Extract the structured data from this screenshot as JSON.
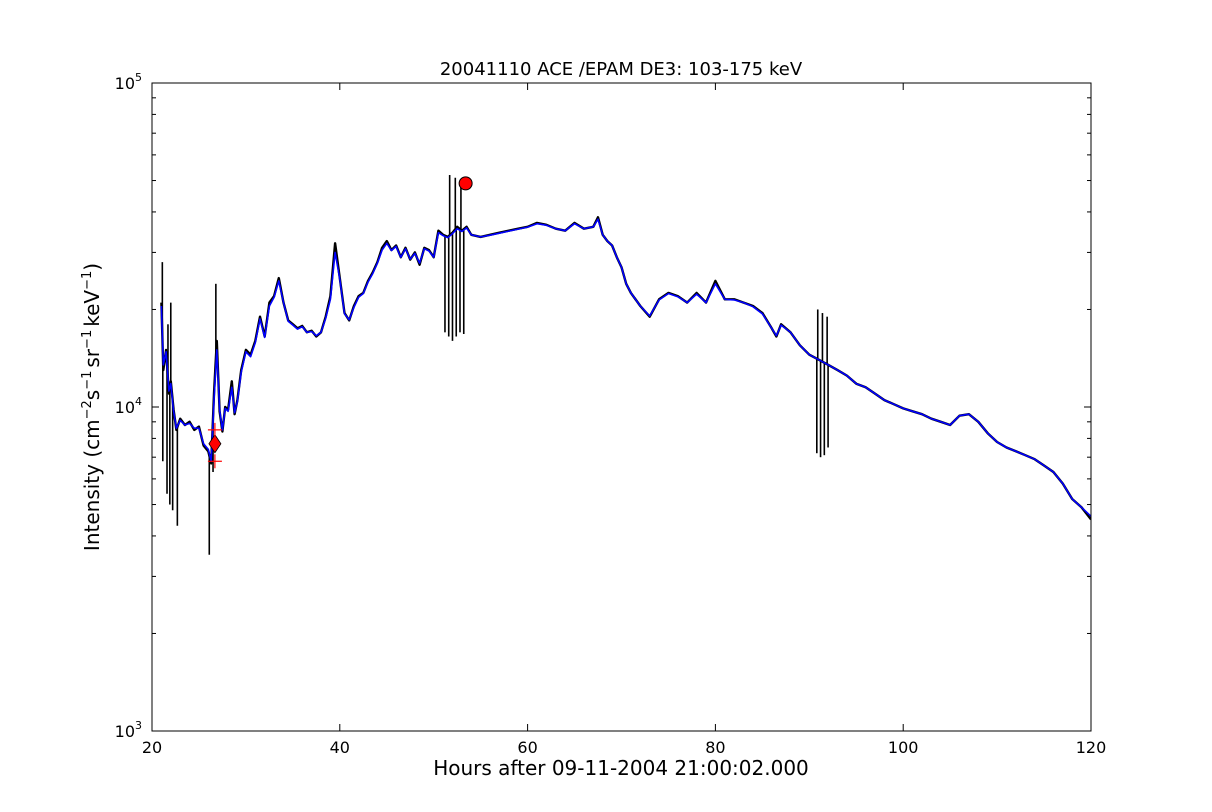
{
  "chart_data": {
    "type": "line",
    "title": "20041110 ACE /EPAM DE3: 103-175 keV",
    "xlabel": "Hours after 09-11-2004 21:00:02.000",
    "ylabel": {
      "base": "Intensity (cm",
      "sup1": "−2",
      "part2": "s",
      "sup2": "−1",
      "part3": "sr",
      "sup3": "−1",
      "part4": "keV",
      "sup4": "−1",
      "end": ")"
    },
    "xlim": [
      20,
      120
    ],
    "ylim": [
      1000,
      100000
    ],
    "yscale": "log",
    "x_ticks": [
      "20",
      "40",
      "60",
      "80",
      "100",
      "120"
    ],
    "y_ticks": [
      {
        "base": "10",
        "exp": "3"
      },
      {
        "base": "10",
        "exp": "4"
      },
      {
        "base": "10",
        "exp": "5"
      }
    ],
    "grid": false,
    "series": [
      {
        "role": "raw-data",
        "color": "#000000",
        "x": [
          21.0,
          21.2,
          21.5,
          21.8,
          22.0,
          22.3,
          22.6,
          23.0,
          23.5,
          24.0,
          24.5,
          25.0,
          25.5,
          26.0,
          26.3,
          26.6,
          26.9,
          27.2,
          27.5,
          27.8,
          28.1,
          28.5,
          28.8,
          29.1,
          29.5,
          30.0,
          30.5,
          31.0,
          31.5,
          32.0,
          32.5,
          33.0,
          33.5,
          34.0,
          34.5,
          35.0,
          35.5,
          36.0,
          36.5,
          37.0,
          37.5,
          38.0,
          38.5,
          39.0,
          39.5,
          40.0,
          40.5,
          41.0,
          41.5,
          42.0,
          42.5,
          43.0,
          43.5,
          44.0,
          44.5,
          45.0,
          45.5,
          46.0,
          46.5,
          47.0,
          47.5,
          48.0,
          48.5,
          49.0,
          49.5,
          50.0,
          50.5,
          51.0,
          51.5,
          52.0,
          52.5,
          53.0,
          53.5,
          54.0,
          55.0,
          56.0,
          57.0,
          58.0,
          59.0,
          60.0,
          61.0,
          62.0,
          63.0,
          64.0,
          65.0,
          66.0,
          67.0,
          67.5,
          68.0,
          68.5,
          69.0,
          69.5,
          70.0,
          70.5,
          71.0,
          72.0,
          73.0,
          74.0,
          75.0,
          76.0,
          77.0,
          78.0,
          79.0,
          80.0,
          81.0,
          82.0,
          83.0,
          84.0,
          85.0,
          86.0,
          86.5,
          87.0,
          88.0,
          89.0,
          90.0,
          91.0,
          92.0,
          93.0,
          94.0,
          95.0,
          96.0,
          97.0,
          98.0,
          99.0,
          100.0,
          101.0,
          102.0,
          103.0,
          104.0,
          105.0,
          106.0,
          107.0,
          108.0,
          109.0,
          110.0,
          111.0,
          112.0,
          113.0,
          114.0,
          115.0,
          116.0,
          117.0,
          118.0,
          119.0,
          120.0
        ],
        "y": [
          21000,
          13000,
          15000,
          11000,
          12000,
          9800,
          8500,
          9200,
          8800,
          9000,
          8500,
          8700,
          7600,
          7300,
          6700,
          11000,
          16000,
          9700,
          8400,
          10000,
          9800,
          12000,
          9500,
          10500,
          13000,
          15000,
          14500,
          16000,
          19000,
          16500,
          21000,
          22000,
          25000,
          21000,
          18500,
          18000,
          17500,
          17800,
          17000,
          17200,
          16500,
          17000,
          19000,
          22000,
          32000,
          25000,
          19500,
          18500,
          20500,
          22000,
          22500,
          24500,
          26000,
          28000,
          31000,
          32500,
          30500,
          31500,
          29000,
          31000,
          28500,
          30000,
          27500,
          31000,
          30500,
          29000,
          35000,
          34000,
          33500,
          34500,
          36000,
          35000,
          36000,
          34000,
          33500,
          34000,
          34500,
          35000,
          35500,
          36000,
          37000,
          36500,
          35500,
          35000,
          37000,
          35500,
          36000,
          38500,
          34000,
          32500,
          31500,
          29000,
          27000,
          24000,
          22500,
          20500,
          19000,
          21500,
          22500,
          22000,
          21000,
          22500,
          21000,
          24500,
          21500,
          21500,
          21000,
          20500,
          19500,
          17500,
          16500,
          18000,
          17000,
          15500,
          14500,
          14000,
          13500,
          13000,
          12500,
          11800,
          11500,
          11000,
          10500,
          10200,
          9900,
          9700,
          9500,
          9200,
          9000,
          8800,
          9400,
          9500,
          9000,
          8300,
          7800,
          7500,
          7300,
          7100,
          6900,
          6600,
          6300,
          5800,
          5200,
          4900,
          4500
        ],
        "spikes": [
          {
            "x": 21.15,
            "y": 6800
          },
          {
            "x": 21.6,
            "y": 5400
          },
          {
            "x": 21.9,
            "y": 5000
          },
          {
            "x": 22.2,
            "y": 4800
          },
          {
            "x": 22.7,
            "y": 4300
          },
          {
            "x": 26.1,
            "y": 3500
          },
          {
            "x": 26.5,
            "y": 6300
          },
          {
            "x": 51.2,
            "y": 17000
          },
          {
            "x": 51.6,
            "y": 16500
          },
          {
            "x": 52.0,
            "y": 16000
          },
          {
            "x": 52.4,
            "y": 16500
          },
          {
            "x": 52.8,
            "y": 17000
          },
          {
            "x": 53.2,
            "y": 16800
          },
          {
            "x": 90.8,
            "y": 7200
          },
          {
            "x": 91.2,
            "y": 7000
          },
          {
            "x": 91.6,
            "y": 7100
          },
          {
            "x": 92.0,
            "y": 7500
          }
        ],
        "upspikes": [
          {
            "x": 21.1,
            "y": 28000
          },
          {
            "x": 21.7,
            "y": 18000
          },
          {
            "x": 22.0,
            "y": 21000
          },
          {
            "x": 26.8,
            "y": 24000
          },
          {
            "x": 51.7,
            "y": 52000
          },
          {
            "x": 52.3,
            "y": 51000
          },
          {
            "x": 52.9,
            "y": 50000
          },
          {
            "x": 90.9,
            "y": 20000
          },
          {
            "x": 91.4,
            "y": 19500
          },
          {
            "x": 91.9,
            "y": 19000
          }
        ]
      },
      {
        "role": "smoothed",
        "color": "#0000ff",
        "x": [
          21.0,
          21.2,
          21.5,
          21.8,
          22.0,
          22.3,
          22.6,
          23.0,
          23.5,
          24.0,
          24.5,
          25.0,
          25.5,
          26.0,
          26.3,
          26.6,
          26.9,
          27.2,
          27.5,
          27.8,
          28.1,
          28.5,
          28.8,
          29.1,
          29.5,
          30.0,
          30.5,
          31.0,
          31.5,
          32.0,
          32.5,
          33.0,
          33.5,
          34.0,
          34.5,
          35.0,
          35.5,
          36.0,
          36.5,
          37.0,
          37.5,
          38.0,
          38.5,
          39.0,
          39.5,
          40.0,
          40.5,
          41.0,
          41.5,
          42.0,
          42.5,
          43.0,
          43.5,
          44.0,
          44.5,
          45.0,
          45.5,
          46.0,
          46.5,
          47.0,
          47.5,
          48.0,
          48.5,
          49.0,
          49.5,
          50.0,
          50.5,
          51.0,
          51.5,
          52.0,
          52.5,
          53.0,
          53.5,
          54.0,
          55.0,
          56.0,
          57.0,
          58.0,
          59.0,
          60.0,
          61.0,
          62.0,
          63.0,
          64.0,
          65.0,
          66.0,
          67.0,
          67.5,
          68.0,
          68.5,
          69.0,
          69.5,
          70.0,
          70.5,
          71.0,
          72.0,
          73.0,
          74.0,
          75.0,
          76.0,
          77.0,
          78.0,
          79.0,
          80.0,
          81.0,
          82.0,
          83.0,
          84.0,
          85.0,
          86.0,
          86.5,
          87.0,
          88.0,
          89.0,
          90.0,
          91.0,
          92.0,
          93.0,
          94.0,
          95.0,
          96.0,
          97.0,
          98.0,
          99.0,
          100.0,
          101.0,
          102.0,
          103.0,
          104.0,
          105.0,
          106.0,
          107.0,
          108.0,
          109.0,
          110.0,
          111.0,
          112.0,
          113.0,
          114.0,
          115.0,
          116.0,
          117.0,
          118.0,
          119.0,
          120.0
        ],
        "y": [
          20500,
          13500,
          14800,
          11200,
          11800,
          9700,
          8600,
          9100,
          8800,
          8900,
          8600,
          8600,
          7700,
          7400,
          6800,
          10500,
          15000,
          9800,
          8500,
          9900,
          9700,
          11500,
          9600,
          10400,
          12800,
          14800,
          14300,
          15800,
          18700,
          16400,
          20500,
          21800,
          24500,
          21000,
          18400,
          17900,
          17400,
          17700,
          17000,
          17100,
          16600,
          17000,
          18800,
          21500,
          30000,
          24800,
          19400,
          18600,
          20300,
          21800,
          22400,
          24300,
          25800,
          27800,
          30500,
          32000,
          30400,
          31300,
          29000,
          30800,
          28600,
          29800,
          27800,
          30800,
          30300,
          29000,
          34500,
          33800,
          33300,
          34300,
          35500,
          34800,
          35700,
          34000,
          33500,
          33900,
          34400,
          34900,
          35400,
          35900,
          36800,
          36400,
          35500,
          35000,
          36800,
          35500,
          36000,
          38000,
          34000,
          32500,
          31500,
          29000,
          27000,
          24000,
          22500,
          20500,
          19100,
          21400,
          22400,
          21900,
          21000,
          22300,
          21000,
          24000,
          21500,
          21400,
          21000,
          20400,
          19400,
          17500,
          16600,
          17900,
          17000,
          15500,
          14500,
          14000,
          13500,
          13000,
          12500,
          11800,
          11500,
          11000,
          10500,
          10200,
          9900,
          9700,
          9500,
          9200,
          9000,
          8800,
          9400,
          9500,
          9000,
          8300,
          7800,
          7500,
          7300,
          7100,
          6900,
          6600,
          6300,
          5800,
          5200,
          4900,
          4600
        ]
      }
    ],
    "markers": [
      {
        "name": "peak-marker",
        "shape": "circle",
        "color": "#ff0000",
        "x": 53.4,
        "y": 49000
      },
      {
        "name": "onset-marker",
        "shape": "diamond",
        "color": "#ff0000",
        "x": 26.7,
        "y": 7700
      },
      {
        "name": "onset-error-upper",
        "shape": "plus",
        "color": "#ff0000",
        "x": 26.7,
        "y": 8500
      },
      {
        "name": "onset-error-lower",
        "shape": "plus",
        "color": "#ff0000",
        "x": 26.7,
        "y": 6800
      }
    ]
  }
}
